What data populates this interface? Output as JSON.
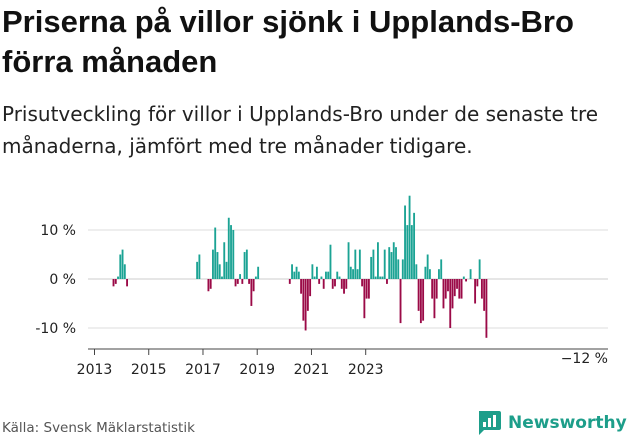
{
  "header": {
    "title": "Priserna på villor sjönk i Upplands-Bro förra månaden",
    "subtitle": "Prisutveckling för villor i Upplands-Bro under de senaste tre månaderna, jämfört med tre månader tidigare."
  },
  "footer": {
    "source": "Källa: Svensk Mäklarstatistik",
    "brand": "Newsworthy"
  },
  "colors": {
    "positive": "#1ba394",
    "negative": "#9b0a47",
    "grid": "#dddddd",
    "brand": "#1d9e8a"
  },
  "chart_data": {
    "type": "bar",
    "title": "",
    "xlabel": "",
    "ylabel": "",
    "x_start": "2013-01",
    "ylim": [
      -13,
      19
    ],
    "y_ticks": [
      {
        "value": 10,
        "label": "10 %"
      },
      {
        "value": 0,
        "label": "0 %"
      },
      {
        "value": -10,
        "label": "-10 %"
      }
    ],
    "x_ticks": [
      "2013",
      "2015",
      "2017",
      "2019",
      "2021",
      "2023"
    ],
    "last_value_label": "−12 %",
    "values": [
      null,
      null,
      null,
      null,
      null,
      null,
      null,
      null,
      -1.5,
      -1,
      0.5,
      5,
      6,
      3,
      -1.5,
      null,
      null,
      null,
      null,
      null,
      null,
      null,
      null,
      null,
      null,
      null,
      null,
      null,
      null,
      null,
      null,
      null,
      null,
      null,
      null,
      null,
      null,
      null,
      null,
      null,
      null,
      null,
      null,
      null,
      null,
      3.5,
      5,
      null,
      null,
      null,
      -2.5,
      -2,
      6,
      10.5,
      5.5,
      3,
      0.5,
      7.5,
      3.5,
      12.5,
      11,
      10,
      -1.5,
      -1,
      1,
      -1,
      5.5,
      6,
      -1,
      -5.5,
      -2.5,
      0.5,
      2.5,
      null,
      null,
      null,
      null,
      null,
      null,
      null,
      null,
      null,
      null,
      null,
      null,
      null,
      -1,
      3,
      1.5,
      2.5,
      1.5,
      -3,
      -8.5,
      -10.5,
      -6.5,
      -3.5,
      3,
      0.5,
      2.5,
      -1,
      0.5,
      -2,
      1.5,
      1.5,
      7,
      -2,
      -1.5,
      1.5,
      0.5,
      -2,
      -3,
      -2,
      7.5,
      2.5,
      2,
      6,
      2,
      6,
      -1.5,
      -8,
      -4,
      -4,
      4.5,
      6,
      0.5,
      7.5,
      0.5,
      0.5,
      6,
      -1,
      6.5,
      5.5,
      7.5,
      6.5,
      4,
      -9,
      4,
      15,
      11,
      17,
      11,
      13.5,
      3,
      -6.5,
      -9,
      -8.5,
      2.5,
      5,
      2,
      -4,
      -8,
      -4,
      2,
      4,
      -6,
      -4,
      -2.5,
      -10,
      -6,
      -3.5,
      -2,
      -4,
      -4,
      0.5,
      -0.5,
      null,
      2,
      0,
      -5,
      -1.5,
      4,
      -4,
      -6.5,
      -12
    ]
  }
}
